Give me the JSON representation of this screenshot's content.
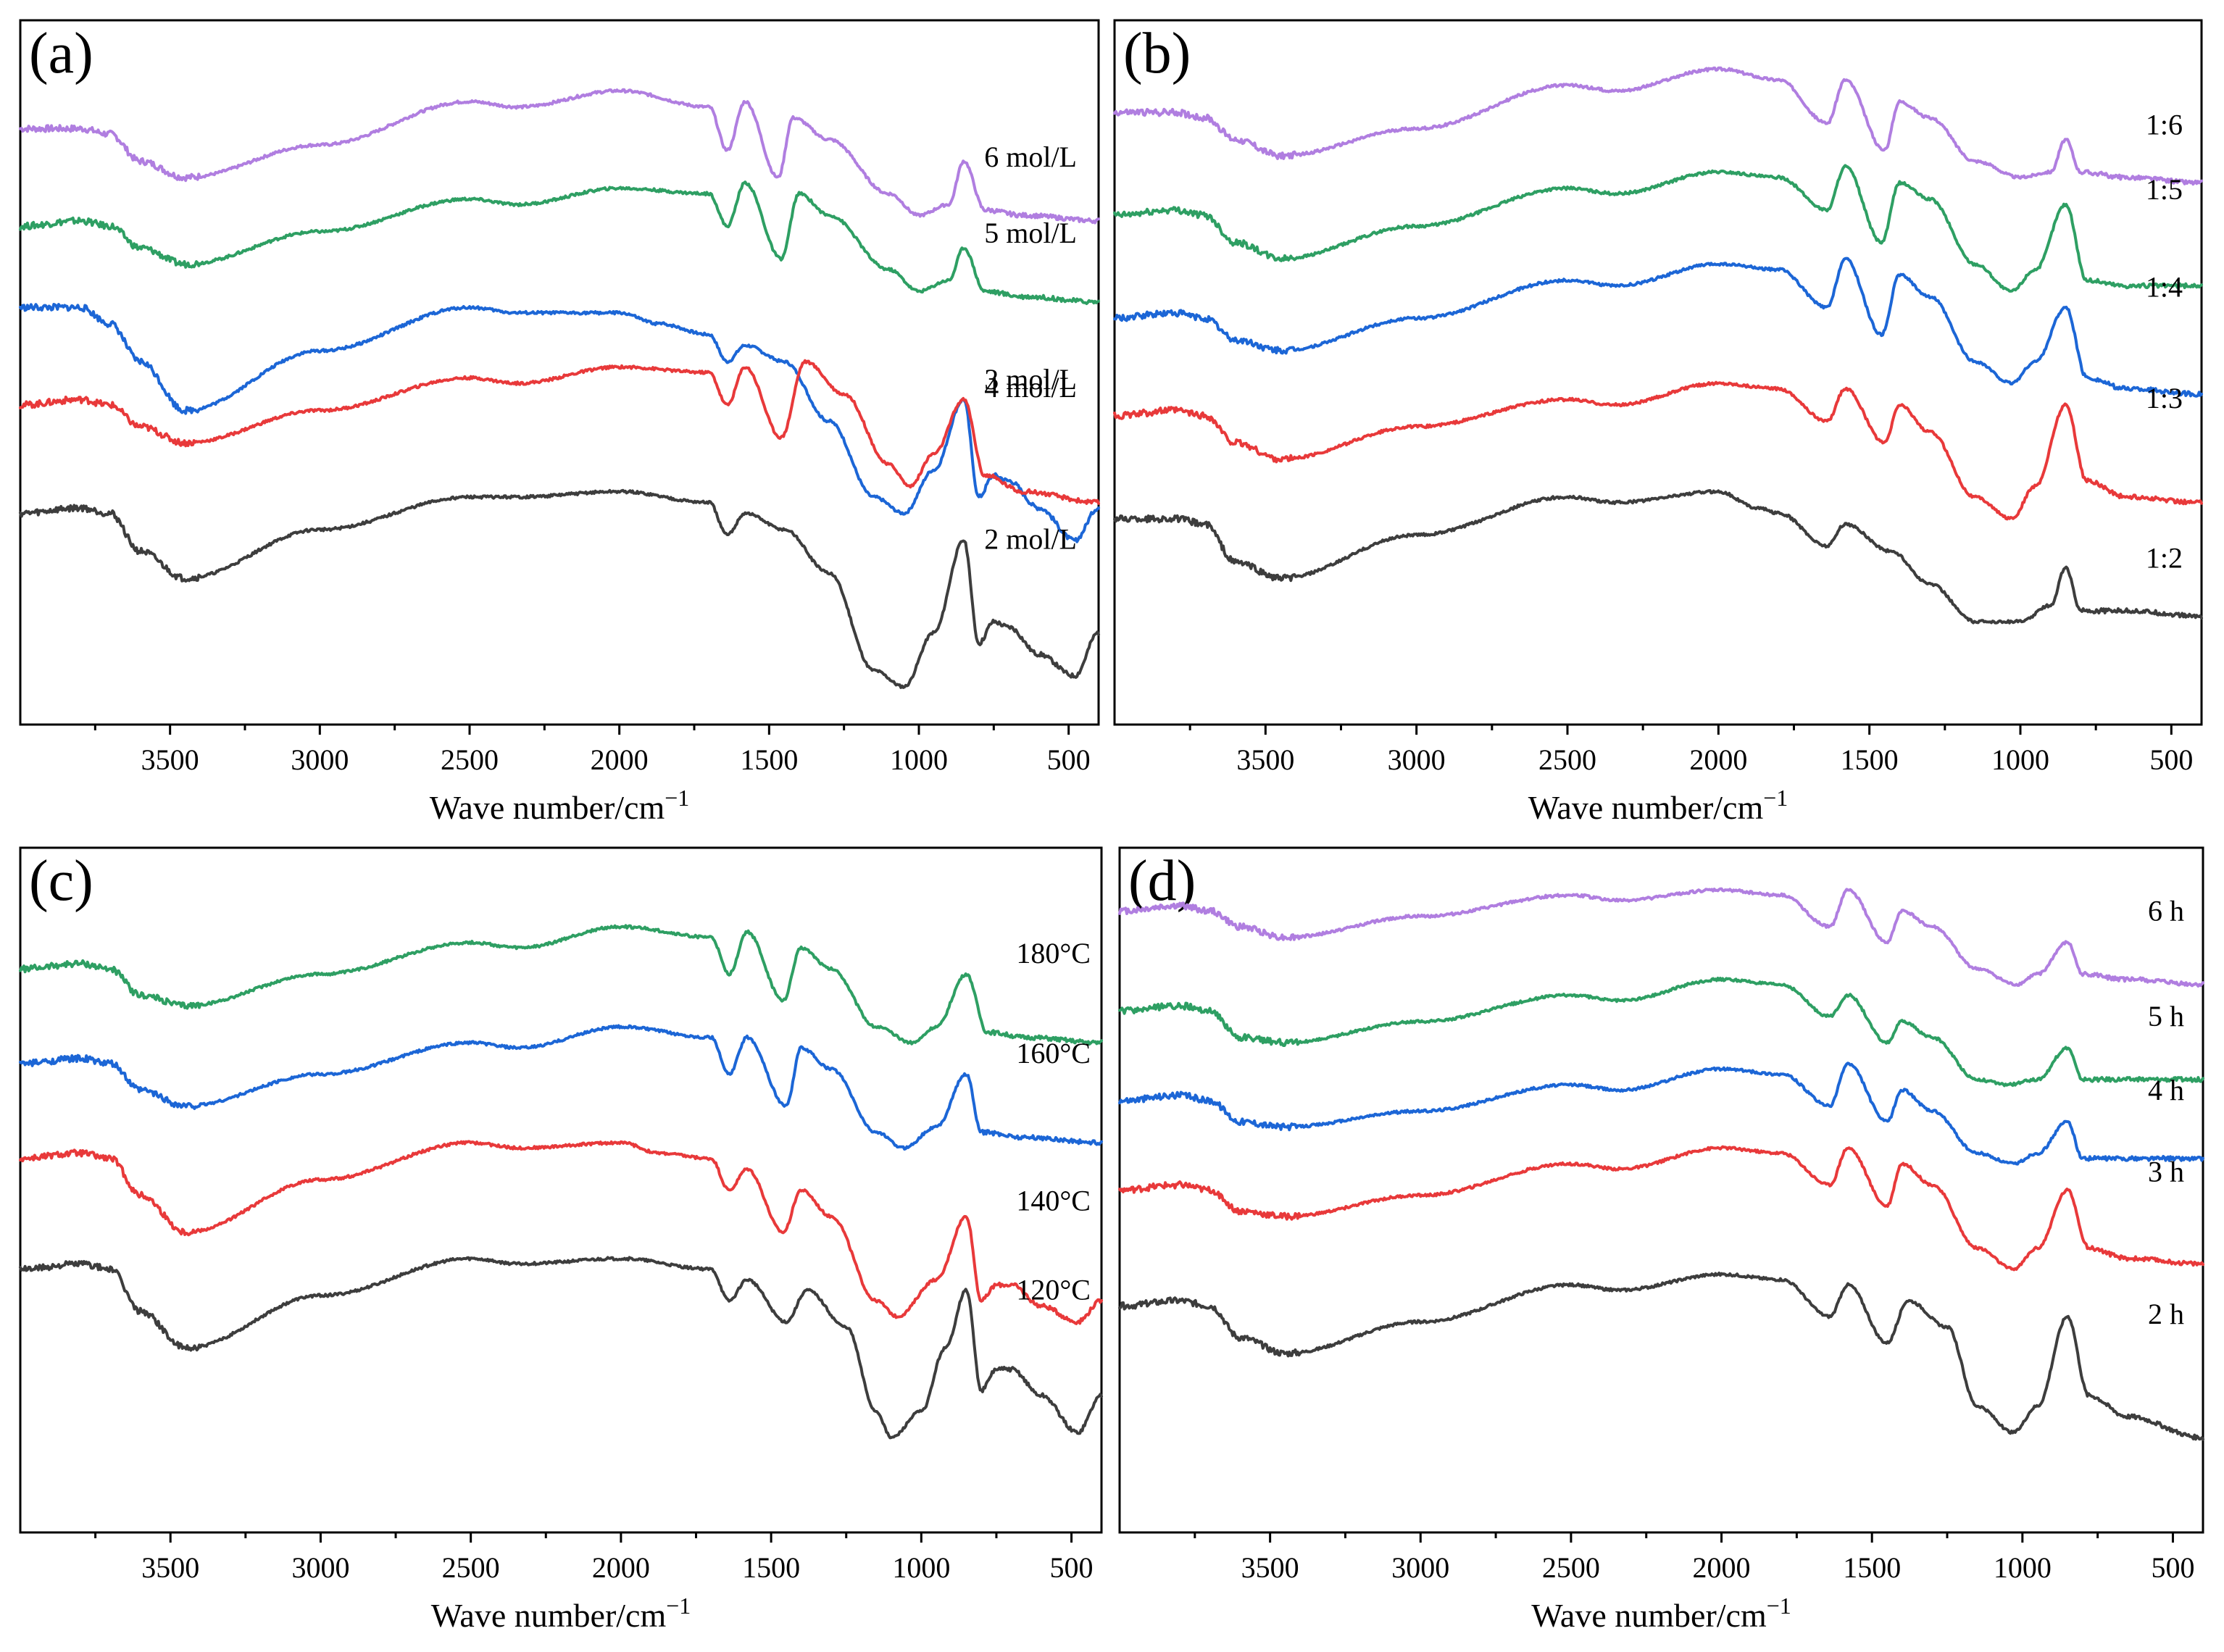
{
  "colors": {
    "black": "#3d3d3d",
    "red": "#e8393a",
    "blue": "#1c66d6",
    "green": "#2e9f63",
    "purple": "#b07ee0"
  },
  "chart_data": [
    {
      "type": "line",
      "panel": "(a)",
      "xlabel": "Wave number/cm",
      "xlabel_sup": "−1",
      "ylabel": "",
      "xlim": [
        4000,
        400
      ],
      "x_ticks": [
        "3500",
        "3000",
        "2500",
        "2000",
        "1500",
        "1000",
        "500"
      ],
      "grid": false,
      "series": [
        {
          "name": "6 mol/L",
          "color": "purple",
          "x": [
            4000,
            3800,
            3700,
            3600,
            3450,
            3000,
            2500,
            2340,
            2000,
            1700,
            1640,
            1580,
            1470,
            1420,
            1300,
            1100,
            1000,
            900,
            850,
            780,
            650,
            400
          ],
          "y": [
            0.88,
            0.88,
            0.87,
            0.82,
            0.79,
            0.85,
            0.93,
            0.92,
            0.95,
            0.92,
            0.84,
            0.93,
            0.79,
            0.9,
            0.86,
            0.76,
            0.72,
            0.74,
            0.82,
            0.73,
            0.72,
            0.71
          ]
        },
        {
          "name": "5 mol/L",
          "color": "green",
          "x": [
            4000,
            3800,
            3700,
            3600,
            3450,
            3000,
            2500,
            2340,
            2000,
            1700,
            1640,
            1580,
            1460,
            1400,
            1300,
            1100,
            1000,
            900,
            850,
            780,
            650,
            400
          ],
          "y": [
            0.7,
            0.71,
            0.7,
            0.66,
            0.63,
            0.69,
            0.75,
            0.74,
            0.77,
            0.76,
            0.7,
            0.78,
            0.64,
            0.76,
            0.72,
            0.62,
            0.58,
            0.6,
            0.66,
            0.58,
            0.57,
            0.56
          ]
        },
        {
          "name": "4 mol/L",
          "color": "blue",
          "x": [
            4000,
            3800,
            3700,
            3600,
            3450,
            3000,
            2500,
            2340,
            2000,
            1870,
            1700,
            1640,
            1580,
            1450,
            1300,
            1150,
            1050,
            950,
            850,
            800,
            750,
            700,
            600,
            480,
            400
          ],
          "y": [
            0.55,
            0.55,
            0.52,
            0.45,
            0.36,
            0.47,
            0.55,
            0.54,
            0.54,
            0.52,
            0.5,
            0.45,
            0.48,
            0.45,
            0.34,
            0.2,
            0.17,
            0.25,
            0.38,
            0.2,
            0.24,
            0.23,
            0.18,
            0.12,
            0.18
          ]
        },
        {
          "name": "3 mol/L",
          "color": "red",
          "x": [
            4000,
            3800,
            3700,
            3600,
            3450,
            3000,
            2500,
            2340,
            2000,
            1700,
            1640,
            1580,
            1460,
            1380,
            1250,
            1100,
            1030,
            950,
            850,
            780,
            650,
            400
          ],
          "y": [
            0.37,
            0.38,
            0.37,
            0.33,
            0.3,
            0.36,
            0.42,
            0.41,
            0.44,
            0.43,
            0.37,
            0.44,
            0.31,
            0.45,
            0.39,
            0.26,
            0.22,
            0.28,
            0.38,
            0.24,
            0.21,
            0.19
          ]
        },
        {
          "name": "2 mol/L",
          "color": "black",
          "x": [
            4000,
            3800,
            3700,
            3600,
            3450,
            3000,
            2500,
            2340,
            2000,
            1700,
            1640,
            1580,
            1450,
            1300,
            1150,
            1050,
            950,
            850,
            800,
            750,
            700,
            600,
            480,
            400
          ],
          "y": [
            0.17,
            0.18,
            0.17,
            0.1,
            0.05,
            0.14,
            0.2,
            0.2,
            0.21,
            0.19,
            0.13,
            0.17,
            0.14,
            0.06,
            -0.12,
            -0.15,
            -0.05,
            0.12,
            -0.07,
            -0.03,
            -0.04,
            -0.09,
            -0.13,
            -0.05
          ]
        }
      ]
    },
    {
      "type": "line",
      "panel": "(b)",
      "xlabel": "Wave number/cm",
      "xlabel_sup": "−1",
      "ylabel": "",
      "xlim": [
        4000,
        400
      ],
      "x_ticks": [
        "3500",
        "3000",
        "2500",
        "2000",
        "1500",
        "1000",
        "500"
      ],
      "grid": false,
      "series": [
        {
          "name": "1:6",
          "color": "purple",
          "x": [
            4000,
            3800,
            3700,
            3600,
            3450,
            3000,
            2500,
            2340,
            2000,
            1800,
            1640,
            1580,
            1450,
            1400,
            1300,
            1150,
            1000,
            900,
            850,
            800,
            650,
            400
          ],
          "y": [
            0.91,
            0.91,
            0.9,
            0.86,
            0.83,
            0.88,
            0.96,
            0.95,
            0.99,
            0.97,
            0.89,
            0.97,
            0.84,
            0.93,
            0.9,
            0.82,
            0.79,
            0.8,
            0.86,
            0.8,
            0.79,
            0.78
          ]
        },
        {
          "name": "1:5",
          "color": "green",
          "x": [
            4000,
            3800,
            3700,
            3600,
            3450,
            3000,
            2500,
            2340,
            2000,
            1800,
            1640,
            1580,
            1460,
            1400,
            1300,
            1150,
            1030,
            950,
            850,
            780,
            650,
            400
          ],
          "y": [
            0.72,
            0.73,
            0.72,
            0.67,
            0.64,
            0.7,
            0.77,
            0.76,
            0.8,
            0.79,
            0.73,
            0.81,
            0.67,
            0.78,
            0.75,
            0.63,
            0.58,
            0.62,
            0.74,
            0.6,
            0.59,
            0.59
          ]
        },
        {
          "name": "1:4",
          "color": "blue",
          "x": [
            4000,
            3800,
            3700,
            3600,
            3450,
            3000,
            2500,
            2340,
            2000,
            1800,
            1640,
            1580,
            1460,
            1400,
            1300,
            1150,
            1030,
            950,
            850,
            780,
            650,
            400
          ],
          "y": [
            0.53,
            0.54,
            0.53,
            0.49,
            0.47,
            0.53,
            0.6,
            0.59,
            0.63,
            0.62,
            0.55,
            0.64,
            0.5,
            0.61,
            0.57,
            0.45,
            0.41,
            0.45,
            0.55,
            0.42,
            0.4,
            0.39
          ]
        },
        {
          "name": "1:3",
          "color": "red",
          "x": [
            4000,
            3800,
            3700,
            3600,
            3450,
            3000,
            2500,
            2340,
            2000,
            1800,
            1640,
            1580,
            1450,
            1400,
            1300,
            1150,
            1030,
            950,
            850,
            780,
            650,
            400
          ],
          "y": [
            0.35,
            0.36,
            0.35,
            0.3,
            0.27,
            0.33,
            0.38,
            0.37,
            0.41,
            0.4,
            0.34,
            0.4,
            0.3,
            0.37,
            0.32,
            0.2,
            0.16,
            0.22,
            0.37,
            0.23,
            0.2,
            0.19
          ]
        },
        {
          "name": "1:2",
          "color": "black",
          "x": [
            4000,
            3800,
            3700,
            3600,
            3450,
            3000,
            2500,
            2340,
            2000,
            1870,
            1800,
            1640,
            1580,
            1430,
            1300,
            1150,
            1000,
            900,
            850,
            800,
            650,
            400
          ],
          "y": [
            0.16,
            0.16,
            0.15,
            0.08,
            0.05,
            0.13,
            0.2,
            0.19,
            0.21,
            0.18,
            0.17,
            0.11,
            0.15,
            0.1,
            0.04,
            -0.03,
            -0.03,
            0.0,
            0.07,
            -0.01,
            -0.01,
            -0.02
          ]
        }
      ]
    },
    {
      "type": "line",
      "panel": "(c)",
      "xlabel": "Wave number/cm",
      "xlabel_sup": "−1",
      "ylabel": "",
      "xlim": [
        4000,
        400
      ],
      "x_ticks": [
        "3500",
        "3000",
        "2500",
        "2000",
        "1500",
        "1000",
        "500"
      ],
      "grid": false,
      "series": [
        {
          "name": "180°C",
          "color": "green",
          "x": [
            4000,
            3800,
            3700,
            3600,
            3450,
            3000,
            2500,
            2340,
            2000,
            1700,
            1640,
            1580,
            1460,
            1400,
            1300,
            1150,
            1030,
            950,
            850,
            780,
            650,
            400
          ],
          "y": [
            0.85,
            0.86,
            0.85,
            0.8,
            0.78,
            0.84,
            0.9,
            0.89,
            0.93,
            0.91,
            0.84,
            0.92,
            0.79,
            0.89,
            0.85,
            0.74,
            0.71,
            0.74,
            0.84,
            0.73,
            0.72,
            0.71
          ]
        },
        {
          "name": "160°C",
          "color": "blue",
          "x": [
            4000,
            3800,
            3700,
            3600,
            3450,
            3000,
            2500,
            2340,
            2000,
            1700,
            1640,
            1580,
            1450,
            1400,
            1300,
            1150,
            1060,
            950,
            850,
            800,
            650,
            400
          ],
          "y": [
            0.67,
            0.68,
            0.67,
            0.62,
            0.59,
            0.65,
            0.71,
            0.7,
            0.74,
            0.72,
            0.65,
            0.72,
            0.59,
            0.7,
            0.66,
            0.54,
            0.51,
            0.55,
            0.65,
            0.54,
            0.53,
            0.52
          ]
        },
        {
          "name": "140°C",
          "color": "red",
          "x": [
            4000,
            3800,
            3700,
            3600,
            3450,
            3000,
            2500,
            2340,
            2000,
            1870,
            1700,
            1640,
            1580,
            1460,
            1400,
            1300,
            1150,
            1080,
            950,
            850,
            800,
            750,
            700,
            600,
            480,
            400
          ],
          "y": [
            0.49,
            0.5,
            0.49,
            0.42,
            0.35,
            0.45,
            0.52,
            0.51,
            0.52,
            0.5,
            0.49,
            0.43,
            0.47,
            0.35,
            0.43,
            0.38,
            0.22,
            0.19,
            0.26,
            0.38,
            0.22,
            0.25,
            0.25,
            0.21,
            0.18,
            0.22
          ]
        },
        {
          "name": "120°C",
          "color": "black",
          "x": [
            4000,
            3800,
            3700,
            3600,
            3450,
            3000,
            2500,
            2340,
            2000,
            1700,
            1640,
            1580,
            1450,
            1380,
            1250,
            1150,
            1100,
            1000,
            920,
            850,
            800,
            750,
            700,
            600,
            480,
            400
          ],
          "y": [
            0.28,
            0.29,
            0.28,
            0.2,
            0.13,
            0.23,
            0.3,
            0.29,
            0.3,
            0.28,
            0.22,
            0.26,
            0.18,
            0.24,
            0.17,
            0.01,
            -0.04,
            0.01,
            0.13,
            0.24,
            0.05,
            0.09,
            0.09,
            0.04,
            -0.03,
            0.04
          ]
        }
      ]
    },
    {
      "type": "line",
      "panel": "(d)",
      "xlabel": "Wave number/cm",
      "xlabel_sup": "−1",
      "ylabel": "",
      "xlim": [
        4000,
        400
      ],
      "x_ticks": [
        "3500",
        "3000",
        "2500",
        "2000",
        "1500",
        "1000",
        "500"
      ],
      "grid": false,
      "series": [
        {
          "name": "6 h",
          "color": "purple",
          "x": [
            4000,
            3800,
            3700,
            3600,
            3450,
            3000,
            2500,
            2340,
            2000,
            1800,
            1640,
            1580,
            1450,
            1400,
            1300,
            1150,
            1020,
            950,
            850,
            800,
            650,
            400
          ],
          "y": [
            0.96,
            0.97,
            0.96,
            0.93,
            0.91,
            0.95,
            0.99,
            0.98,
            1.0,
            0.99,
            0.93,
            1.0,
            0.9,
            0.96,
            0.93,
            0.85,
            0.82,
            0.84,
            0.9,
            0.84,
            0.83,
            0.82
          ]
        },
        {
          "name": "5 h",
          "color": "green",
          "x": [
            4000,
            3800,
            3700,
            3600,
            3450,
            3000,
            2500,
            2340,
            2000,
            1800,
            1640,
            1580,
            1450,
            1400,
            1300,
            1150,
            1050,
            950,
            850,
            800,
            650,
            400
          ],
          "y": [
            0.77,
            0.78,
            0.77,
            0.72,
            0.71,
            0.75,
            0.8,
            0.79,
            0.83,
            0.82,
            0.76,
            0.8,
            0.71,
            0.75,
            0.72,
            0.64,
            0.63,
            0.64,
            0.7,
            0.64,
            0.64,
            0.64
          ]
        },
        {
          "name": "4 h",
          "color": "blue",
          "x": [
            4000,
            3800,
            3700,
            3600,
            3450,
            3000,
            2500,
            2340,
            2000,
            1800,
            1640,
            1580,
            1450,
            1400,
            1300,
            1150,
            1030,
            950,
            850,
            800,
            650,
            400
          ],
          "y": [
            0.6,
            0.61,
            0.6,
            0.56,
            0.55,
            0.58,
            0.63,
            0.62,
            0.66,
            0.65,
            0.59,
            0.67,
            0.56,
            0.62,
            0.58,
            0.5,
            0.48,
            0.5,
            0.56,
            0.49,
            0.49,
            0.49
          ]
        },
        {
          "name": "3 h",
          "color": "red",
          "x": [
            4000,
            3800,
            3700,
            3600,
            3450,
            3000,
            2500,
            2340,
            2000,
            1800,
            1640,
            1580,
            1450,
            1400,
            1300,
            1150,
            1030,
            950,
            850,
            780,
            650,
            400
          ],
          "y": [
            0.43,
            0.44,
            0.43,
            0.39,
            0.38,
            0.42,
            0.48,
            0.47,
            0.51,
            0.5,
            0.44,
            0.51,
            0.4,
            0.48,
            0.44,
            0.32,
            0.28,
            0.32,
            0.43,
            0.32,
            0.3,
            0.29
          ]
        },
        {
          "name": "2 h",
          "color": "black",
          "x": [
            4000,
            3800,
            3700,
            3600,
            3450,
            3000,
            2500,
            2340,
            2000,
            1800,
            1640,
            1580,
            1450,
            1380,
            1250,
            1150,
            1030,
            950,
            850,
            780,
            650,
            400
          ],
          "y": [
            0.21,
            0.22,
            0.21,
            0.15,
            0.12,
            0.18,
            0.25,
            0.24,
            0.27,
            0.26,
            0.19,
            0.25,
            0.14,
            0.22,
            0.17,
            0.02,
            -0.03,
            0.02,
            0.19,
            0.04,
            0.0,
            -0.04
          ]
        }
      ]
    }
  ]
}
